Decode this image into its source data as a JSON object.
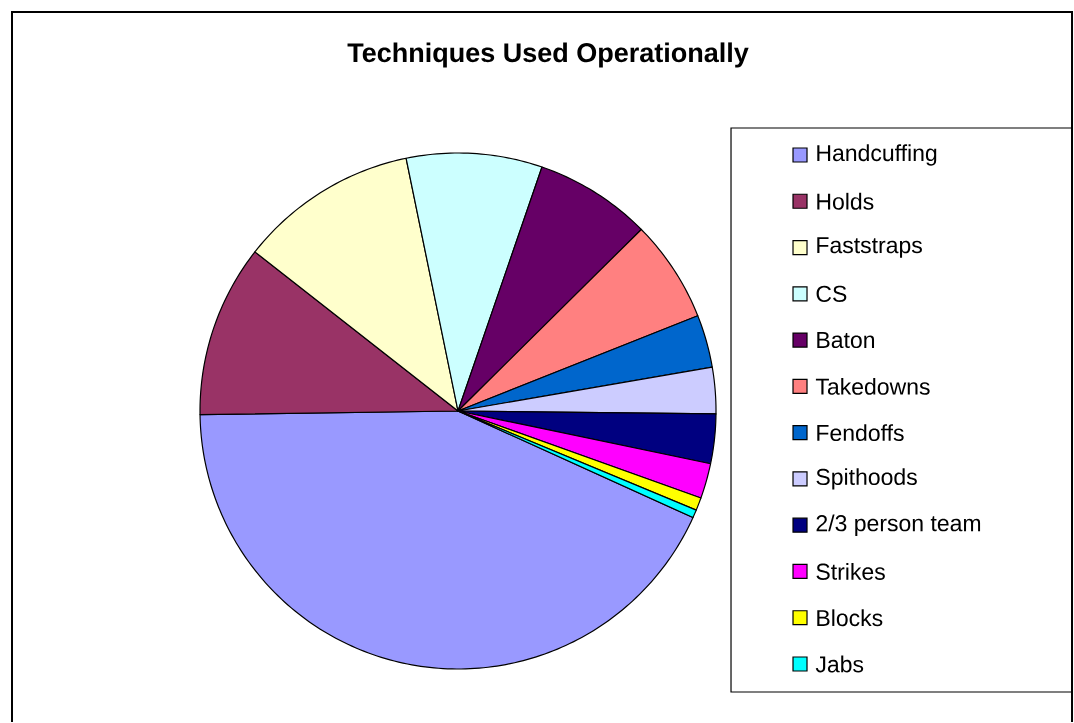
{
  "chart_data": {
    "type": "pie",
    "title": "Techniques Used Operationally",
    "categories": [
      "Handcuffing",
      "Holds",
      "Faststraps",
      "CS",
      "Baton",
      "Takedowns",
      "Fendoffs",
      "Spithoods",
      "2/3 person team",
      "Strikes",
      "Blocks",
      "Jabs"
    ],
    "values": [
      43.0,
      10.8,
      11.2,
      8.5,
      7.3,
      6.4,
      3.3,
      2.9,
      3.1,
      2.2,
      0.8,
      0.5
    ],
    "colors": [
      "#9999ff",
      "#993366",
      "#ffffcc",
      "#ccffff",
      "#660066",
      "#ff8080",
      "#0066cc",
      "#ccccff",
      "#000080",
      "#ff00ff",
      "#ffff00",
      "#00ffff"
    ],
    "legend": "right"
  }
}
